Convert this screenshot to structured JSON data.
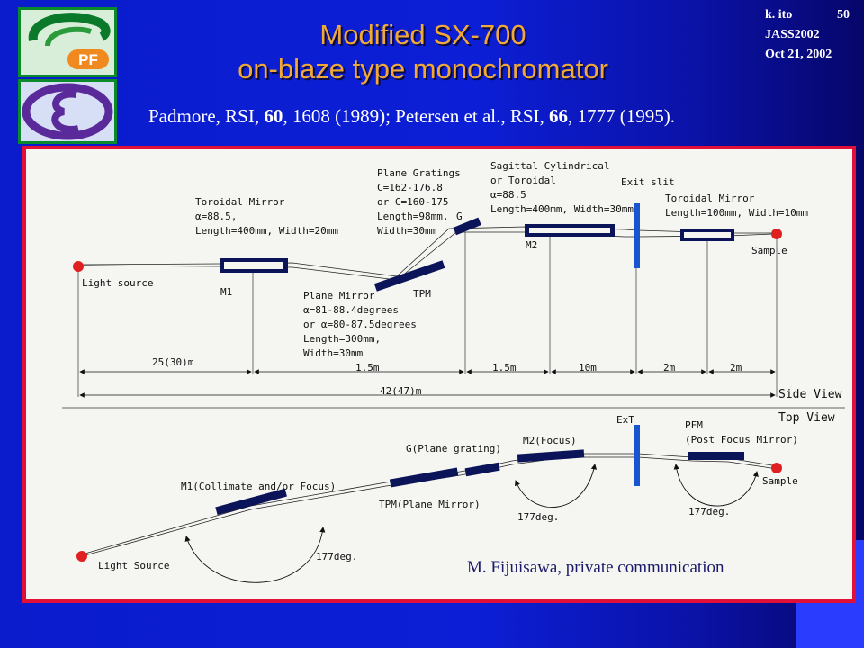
{
  "slide": {
    "title_line1": "Modified SX-700",
    "title_line2": "on-blaze type monochromator",
    "author": "k. ito",
    "slide_number": "50",
    "conference": "JASS2002",
    "date": "Oct 21, 2002",
    "logo_top_text": "PF",
    "credit": "M. Fijuisawa, private communication",
    "colors": {
      "title": "#f0a838",
      "frame": "#e01038",
      "background": "#0c1fd6"
    }
  },
  "citation": {
    "p1": "Padmore, RSI, ",
    "v1": "60",
    "p2": ", 1608 (1989); Petersen et al., RSI, ",
    "v2": "66",
    "p3": ", 1777 (1995)."
  },
  "side_view": {
    "view_label": "Side View",
    "light_source": "Light source",
    "sample": "Sample",
    "m1": "M1",
    "tpm": "TPM",
    "g": "G",
    "m2": "M2",
    "exit_slit": "Exit slit",
    "toroidal1": [
      "Toroidal Mirror",
      "α=88.5,",
      "Length=400mm, Width=20mm"
    ],
    "plane_mirror": [
      "Plane Mirror",
      "α=81-88.4degrees",
      "or α=80-87.5degrees",
      "Length=300mm,",
      "Width=30mm"
    ],
    "gratings": [
      "Plane Gratings",
      "C=162-176.8",
      "or C=160-175",
      "Length=98mm,",
      "Width=30mm"
    ],
    "sagittal": [
      "Sagittal Cylindrical",
      "or Toroidal",
      "α=88.5",
      "Length=400mm, Width=30mm"
    ],
    "toroidal2": [
      "Toroidal Mirror",
      "Length=100mm, Width=10mm"
    ],
    "distances": {
      "d1": "25(30)m",
      "d2": "1.5m",
      "d3": "1.5m",
      "d4": "10m",
      "d5": "2m",
      "d6": "2m",
      "total": "42(47)m"
    }
  },
  "top_view": {
    "view_label": "Top View",
    "light_source": "Light Source",
    "sample": "Sample",
    "m1": "M1(Collimate and/or Focus)",
    "tpm": "TPM(Plane Mirror)",
    "g": "G(Plane grating)",
    "m2": "M2(Focus)",
    "ext": "ExT",
    "pfm1": "PFM",
    "pfm2": "(Post Focus Mirror)",
    "angle1": "177deg.",
    "angle2": "177deg.",
    "angle3": "177deg."
  }
}
